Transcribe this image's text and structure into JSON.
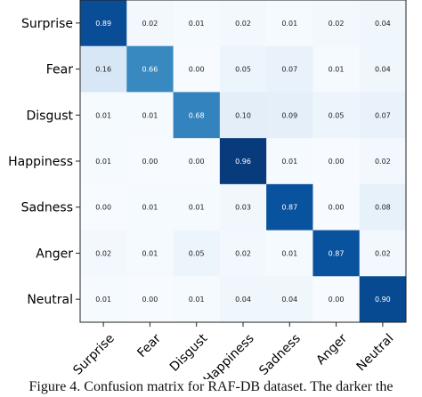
{
  "chart_data": {
    "type": "heatmap",
    "rows": [
      "Surprise",
      "Fear",
      "Disgust",
      "Happiness",
      "Sadness",
      "Anger",
      "Neutral"
    ],
    "columns": [
      "Surprise",
      "Fear",
      "Disgust",
      "Happiness",
      "Sadness",
      "Anger",
      "Neutral"
    ],
    "values": [
      [
        0.89,
        0.02,
        0.01,
        0.02,
        0.01,
        0.02,
        0.04
      ],
      [
        0.16,
        0.66,
        0.0,
        0.05,
        0.07,
        0.01,
        0.04
      ],
      [
        0.01,
        0.01,
        0.68,
        0.1,
        0.09,
        0.05,
        0.07
      ],
      [
        0.01,
        0.0,
        0.0,
        0.96,
        0.01,
        0.0,
        0.02
      ],
      [
        0.0,
        0.01,
        0.01,
        0.03,
        0.87,
        0.0,
        0.08
      ],
      [
        0.02,
        0.01,
        0.05,
        0.02,
        0.01,
        0.87,
        0.02
      ],
      [
        0.01,
        0.0,
        0.01,
        0.04,
        0.04,
        0.0,
        0.9
      ]
    ],
    "colormap": "Blues",
    "range": [
      0,
      1
    ]
  },
  "caption": "Figure 4. Confusion matrix for RAF-DB dataset. The darker the"
}
